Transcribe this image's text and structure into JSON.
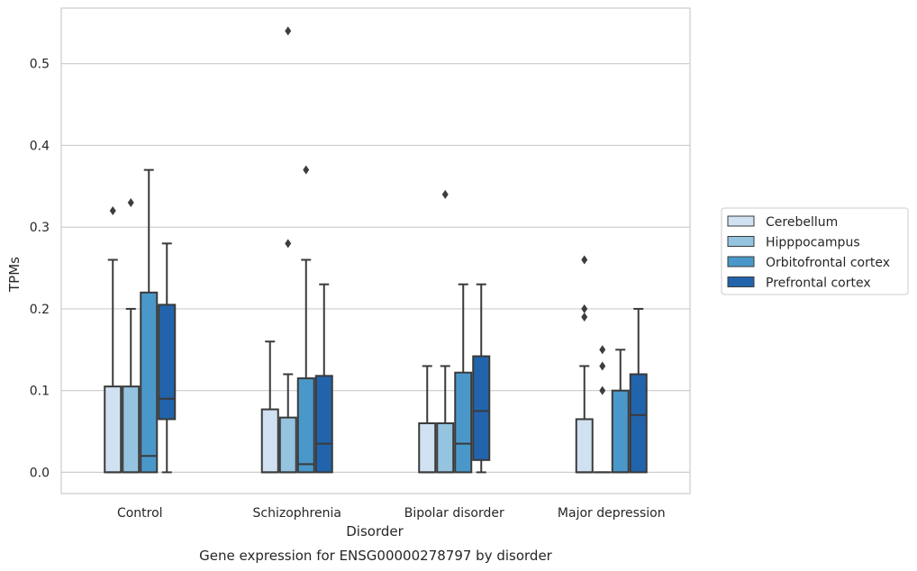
{
  "chart_data": {
    "type": "boxplot",
    "title": "Gene expression for ENSG00000278797 by disorder",
    "xlabel": "Disorder",
    "ylabel": "TPMs",
    "ylim": [
      -0.026,
      0.568
    ],
    "yticks": [
      "0.0",
      "0.1",
      "0.2",
      "0.3",
      "0.4",
      "0.5"
    ],
    "categories": [
      "Control",
      "Schizophrenia",
      "Bipolar disorder",
      "Major depression"
    ],
    "grid": "horizontal",
    "legend_position": "right",
    "series": [
      {
        "name": "Cerebellum",
        "color": "#d0e1f2",
        "boxes": [
          {
            "whislo": 0.0,
            "q1": 0.0,
            "med": 0.0,
            "q3": 0.105,
            "whishi": 0.26,
            "fliers": [
              0.32
            ]
          },
          {
            "whislo": 0.0,
            "q1": 0.0,
            "med": 0.0,
            "q3": 0.077,
            "whishi": 0.16,
            "fliers": []
          },
          {
            "whislo": 0.0,
            "q1": 0.0,
            "med": 0.0,
            "q3": 0.06,
            "whishi": 0.13,
            "fliers": []
          },
          {
            "whislo": 0.0,
            "q1": 0.0,
            "med": 0.0,
            "q3": 0.065,
            "whishi": 0.13,
            "fliers": [
              0.26,
              0.2,
              0.19
            ]
          }
        ]
      },
      {
        "name": "Hipppocampus",
        "color": "#94c4df",
        "boxes": [
          {
            "whislo": 0.0,
            "q1": 0.0,
            "med": 0.0,
            "q3": 0.105,
            "whishi": 0.2,
            "fliers": [
              0.33
            ]
          },
          {
            "whislo": 0.0,
            "q1": 0.0,
            "med": 0.0,
            "q3": 0.067,
            "whishi": 0.12,
            "fliers": [
              0.28,
              0.54
            ]
          },
          {
            "whislo": 0.0,
            "q1": 0.0,
            "med": 0.0,
            "q3": 0.06,
            "whishi": 0.13,
            "fliers": [
              0.34
            ]
          },
          {
            "whislo": 0.0,
            "q1": 0.0,
            "med": 0.0,
            "q3": 0.0,
            "whishi": 0.0,
            "fliers": [
              0.15,
              0.13,
              0.1
            ]
          }
        ]
      },
      {
        "name": "Orbitofrontal cortex",
        "color": "#4a98c9",
        "boxes": [
          {
            "whislo": 0.0,
            "q1": 0.0,
            "med": 0.02,
            "q3": 0.22,
            "whishi": 0.37,
            "fliers": []
          },
          {
            "whislo": 0.0,
            "q1": 0.0,
            "med": 0.01,
            "q3": 0.115,
            "whishi": 0.26,
            "fliers": [
              0.37
            ]
          },
          {
            "whislo": 0.0,
            "q1": 0.0,
            "med": 0.035,
            "q3": 0.122,
            "whishi": 0.23,
            "fliers": []
          },
          {
            "whislo": 0.0,
            "q1": 0.0,
            "med": 0.0,
            "q3": 0.1,
            "whishi": 0.15,
            "fliers": []
          }
        ]
      },
      {
        "name": "Prefrontal cortex",
        "color": "#2164ab",
        "boxes": [
          {
            "whislo": 0.0,
            "q1": 0.065,
            "med": 0.09,
            "q3": 0.205,
            "whishi": 0.28,
            "fliers": []
          },
          {
            "whislo": 0.0,
            "q1": 0.0,
            "med": 0.035,
            "q3": 0.118,
            "whishi": 0.23,
            "fliers": []
          },
          {
            "whislo": 0.0,
            "q1": 0.015,
            "med": 0.075,
            "q3": 0.142,
            "whishi": 0.23,
            "fliers": []
          },
          {
            "whislo": 0.0,
            "q1": 0.0,
            "med": 0.07,
            "q3": 0.12,
            "whishi": 0.2,
            "fliers": []
          }
        ]
      }
    ]
  }
}
